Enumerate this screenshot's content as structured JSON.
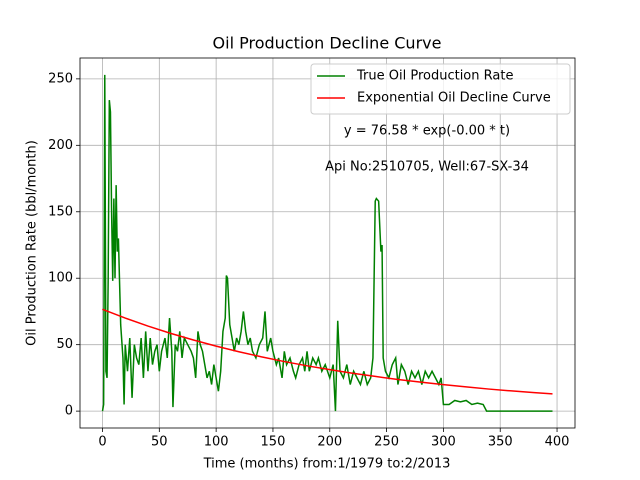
{
  "chart_data": {
    "type": "line",
    "title": "Oil Production Decline Curve",
    "xlabel": "Time (months) from:1/1979 to:2/2013",
    "ylabel": "Oil Production Rate (bbl/month)",
    "annotations": [
      "y = 76.58 * exp(-0.00 * t)",
      "Api No:2510705, Well:67-SX-34"
    ],
    "xlim": [
      -19.8,
      415.8
    ],
    "ylim": [
      -12.7,
      265.7
    ],
    "xticks": [
      0,
      50,
      100,
      150,
      200,
      250,
      300,
      350,
      400
    ],
    "yticks": [
      0,
      50,
      100,
      150,
      200,
      250
    ],
    "grid": true,
    "legend": "upper right",
    "series": [
      {
        "name": "True Oil Production Rate",
        "color": "#008000",
        "x": [
          0,
          1,
          2,
          3,
          4,
          5,
          6,
          7,
          8,
          9,
          10,
          11,
          12,
          13,
          14,
          16,
          18,
          19,
          20,
          22,
          24,
          26,
          28,
          30,
          32,
          34,
          36,
          38,
          40,
          42,
          44,
          46,
          48,
          50,
          52,
          55,
          57,
          59,
          61,
          62,
          64,
          66,
          68,
          70,
          72,
          75,
          78,
          80,
          82,
          84,
          86,
          88,
          90,
          92,
          94,
          96,
          98,
          100,
          102,
          104,
          106,
          108,
          109,
          110,
          112,
          114,
          116,
          118,
          120,
          122,
          124,
          126,
          128,
          130,
          132,
          135,
          138,
          141,
          143,
          145,
          148,
          150,
          153,
          155,
          158,
          160,
          162,
          165,
          168,
          170,
          173,
          176,
          178,
          180,
          182,
          185,
          188,
          190,
          193,
          196,
          200,
          203,
          205,
          207,
          209,
          212,
          215,
          218,
          221,
          224,
          227,
          230,
          233,
          236,
          238,
          240,
          241,
          243,
          245,
          246,
          247,
          249,
          252,
          255,
          258,
          260,
          263,
          266,
          269,
          272,
          275,
          278,
          281,
          284,
          287,
          290,
          293,
          296,
          298,
          300,
          305,
          310,
          315,
          320,
          325,
          330,
          335,
          338,
          396
        ],
        "values": [
          0,
          5,
          253,
          30,
          25,
          100,
          234,
          225,
          150,
          98,
          160,
          100,
          170,
          120,
          130,
          65,
          40,
          5,
          50,
          30,
          55,
          10,
          50,
          40,
          35,
          55,
          25,
          60,
          30,
          55,
          35,
          45,
          50,
          30,
          45,
          55,
          40,
          70,
          45,
          3,
          50,
          45,
          60,
          40,
          55,
          50,
          45,
          40,
          25,
          60,
          50,
          45,
          35,
          25,
          30,
          20,
          35,
          25,
          15,
          30,
          60,
          70,
          102,
          100,
          65,
          55,
          45,
          55,
          50,
          60,
          75,
          60,
          50,
          55,
          45,
          40,
          50,
          55,
          75,
          45,
          55,
          45,
          35,
          40,
          25,
          45,
          35,
          40,
          30,
          25,
          35,
          40,
          30,
          45,
          30,
          40,
          35,
          40,
          30,
          35,
          25,
          35,
          0,
          68,
          30,
          25,
          35,
          20,
          30,
          25,
          20,
          30,
          20,
          25,
          40,
          158,
          160,
          158,
          120,
          125,
          40,
          30,
          25,
          35,
          40,
          20,
          35,
          30,
          20,
          30,
          25,
          30,
          20,
          30,
          25,
          30,
          25,
          20,
          25,
          5,
          5,
          8,
          7,
          8,
          5,
          6,
          5,
          0,
          0
        ]
      },
      {
        "name": "Exponential Oil Decline Curve",
        "color": "#ff0000",
        "x": [
          0,
          20,
          40,
          60,
          80,
          100,
          120,
          140,
          160,
          180,
          200,
          220,
          240,
          260,
          280,
          300,
          320,
          340,
          360,
          380,
          396
        ],
        "values": [
          76.58,
          70.0,
          64.0,
          58.5,
          53.5,
          48.9,
          44.7,
          40.8,
          37.3,
          34.1,
          31.2,
          28.5,
          26.1,
          23.8,
          21.8,
          19.9,
          18.2,
          16.6,
          15.2,
          13.9,
          13.0
        ]
      }
    ]
  }
}
